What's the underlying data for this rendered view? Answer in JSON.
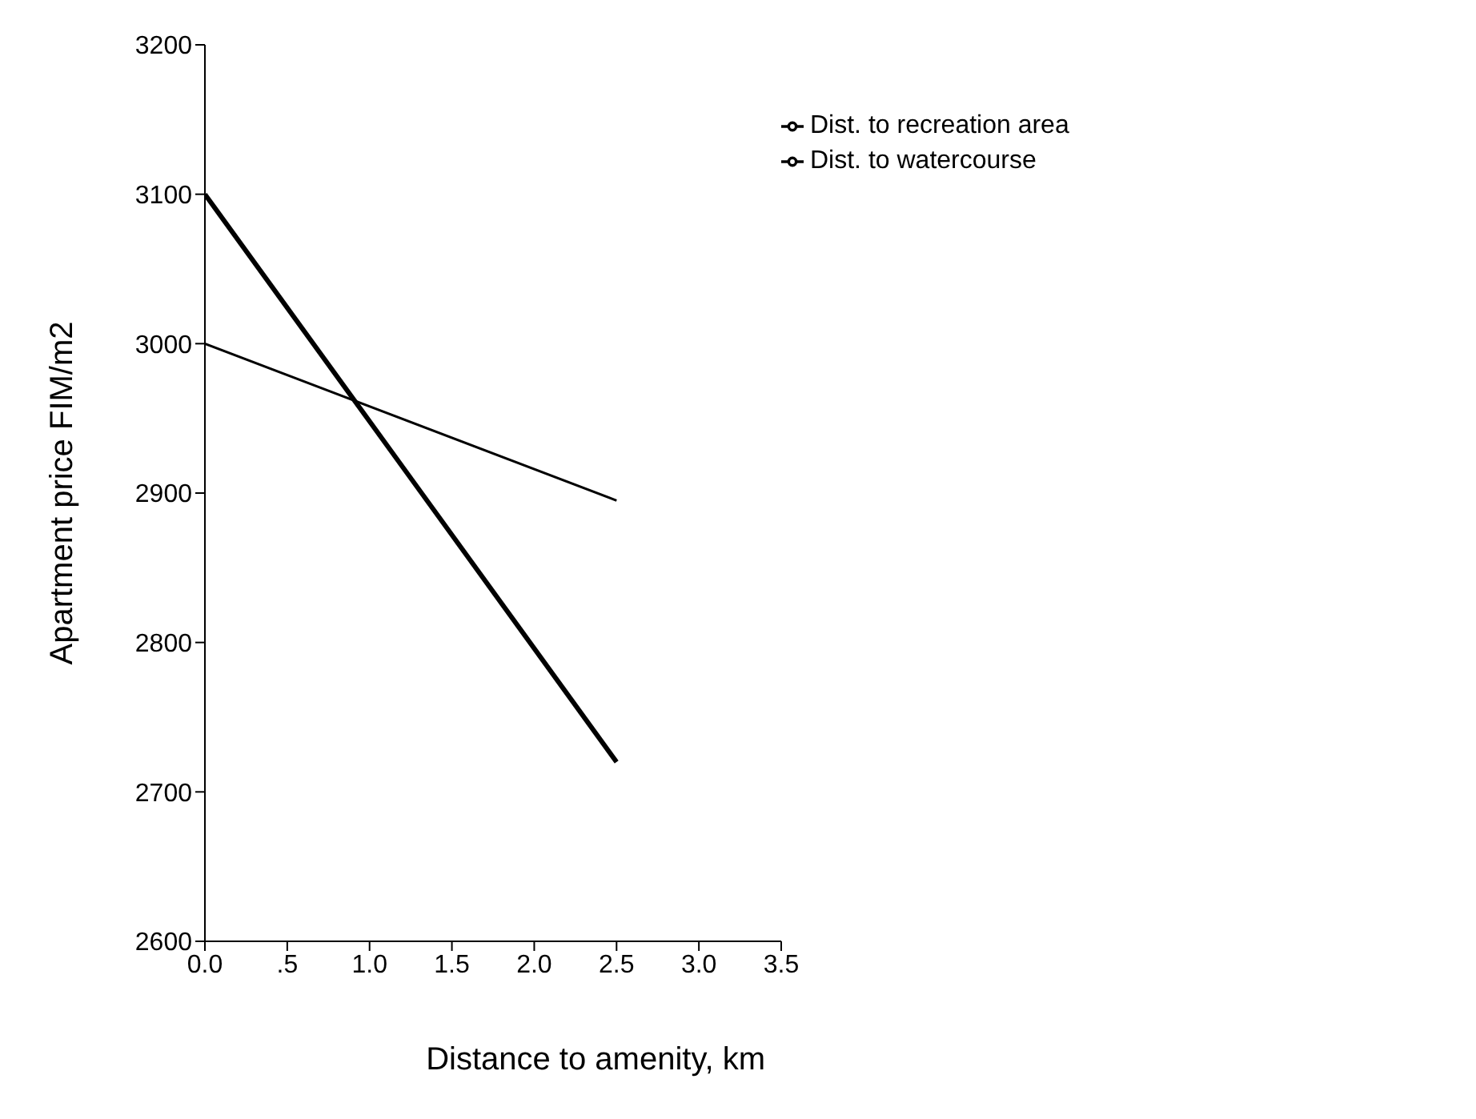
{
  "chart_data": {
    "type": "line",
    "xlabel": "Distance to amenity, km",
    "ylabel": "Apartment price FIM/m2",
    "x": [
      0,
      2.5
    ],
    "series": [
      {
        "name": "Dist. to watercourse",
        "color": "#000000",
        "values": [
          3100,
          2720
        ]
      },
      {
        "name": "Dist. to recreation area",
        "color": "#000000",
        "values": [
          3000,
          2895
        ]
      }
    ],
    "xlim": [
      0,
      3.5
    ],
    "xticks": [
      {
        "value": 0,
        "label": "0.0"
      },
      {
        "value": 0.5,
        "label": ".5"
      },
      {
        "value": 1,
        "label": "1.0"
      },
      {
        "value": 1.5,
        "label": "1.5"
      },
      {
        "value": 2,
        "label": "2.0"
      },
      {
        "value": 2.5,
        "label": "2.5"
      },
      {
        "value": 3,
        "label": "3.0"
      },
      {
        "value": 3.5,
        "label": "3.5"
      }
    ],
    "ylim": [
      2600,
      3200
    ],
    "yticks": [
      2600,
      2700,
      2800,
      2900,
      3000,
      3100,
      3200
    ],
    "grid": false,
    "legend": "top right",
    "marker": "none",
    "line_style": "solid"
  }
}
